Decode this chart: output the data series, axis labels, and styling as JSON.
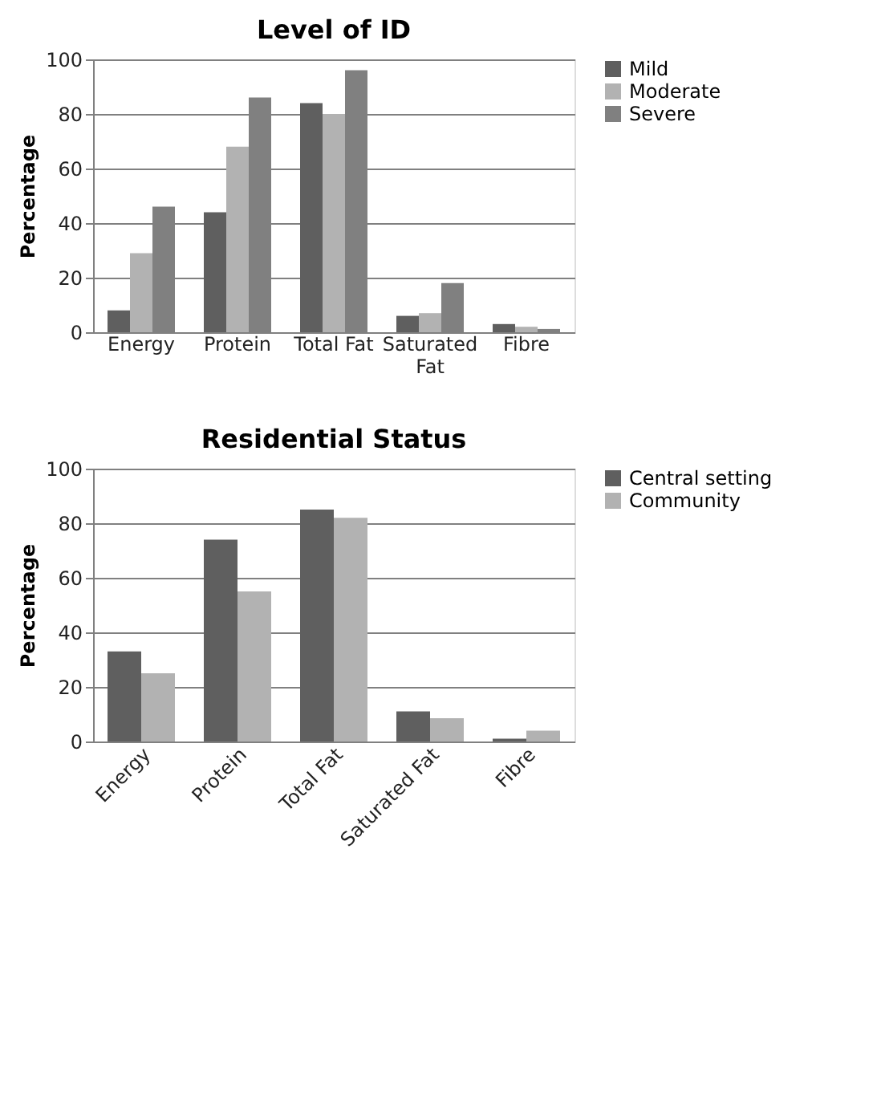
{
  "chart_data": [
    {
      "type": "bar",
      "title": "Level of ID",
      "ylabel": "Percentage",
      "categories": [
        "Energy",
        "Protein",
        "Total Fat",
        "Saturated Fat",
        "Fibre"
      ],
      "series": [
        {
          "name": "Mild",
          "color": "#5f5f5f",
          "values": [
            8,
            44,
            84,
            6,
            3
          ]
        },
        {
          "name": "Moderate",
          "color": "#b2b2b2",
          "values": [
            29,
            68,
            80,
            7,
            2
          ]
        },
        {
          "name": "Severe",
          "color": "#808080",
          "values": [
            46,
            86,
            96,
            18,
            1.2
          ]
        }
      ],
      "ylim": [
        0,
        100
      ],
      "yticks": [
        0,
        20,
        40,
        60,
        80,
        100
      ],
      "grid": "y",
      "legend": "right"
    },
    {
      "type": "bar",
      "title": "Residential Status",
      "ylabel": "Percentage",
      "categories": [
        "Energy",
        "Protein",
        "Total Fat",
        "Saturated Fat",
        "Fibre"
      ],
      "series": [
        {
          "name": "Central setting",
          "color": "#5f5f5f",
          "values": [
            33,
            74,
            85,
            11,
            1
          ]
        },
        {
          "name": "Community",
          "color": "#b2b2b2",
          "values": [
            25,
            55,
            82,
            8.5,
            4
          ]
        }
      ],
      "ylim": [
        0,
        100
      ],
      "yticks": [
        0,
        20,
        40,
        60,
        80,
        100
      ],
      "grid": "y",
      "legend": "right"
    }
  ]
}
